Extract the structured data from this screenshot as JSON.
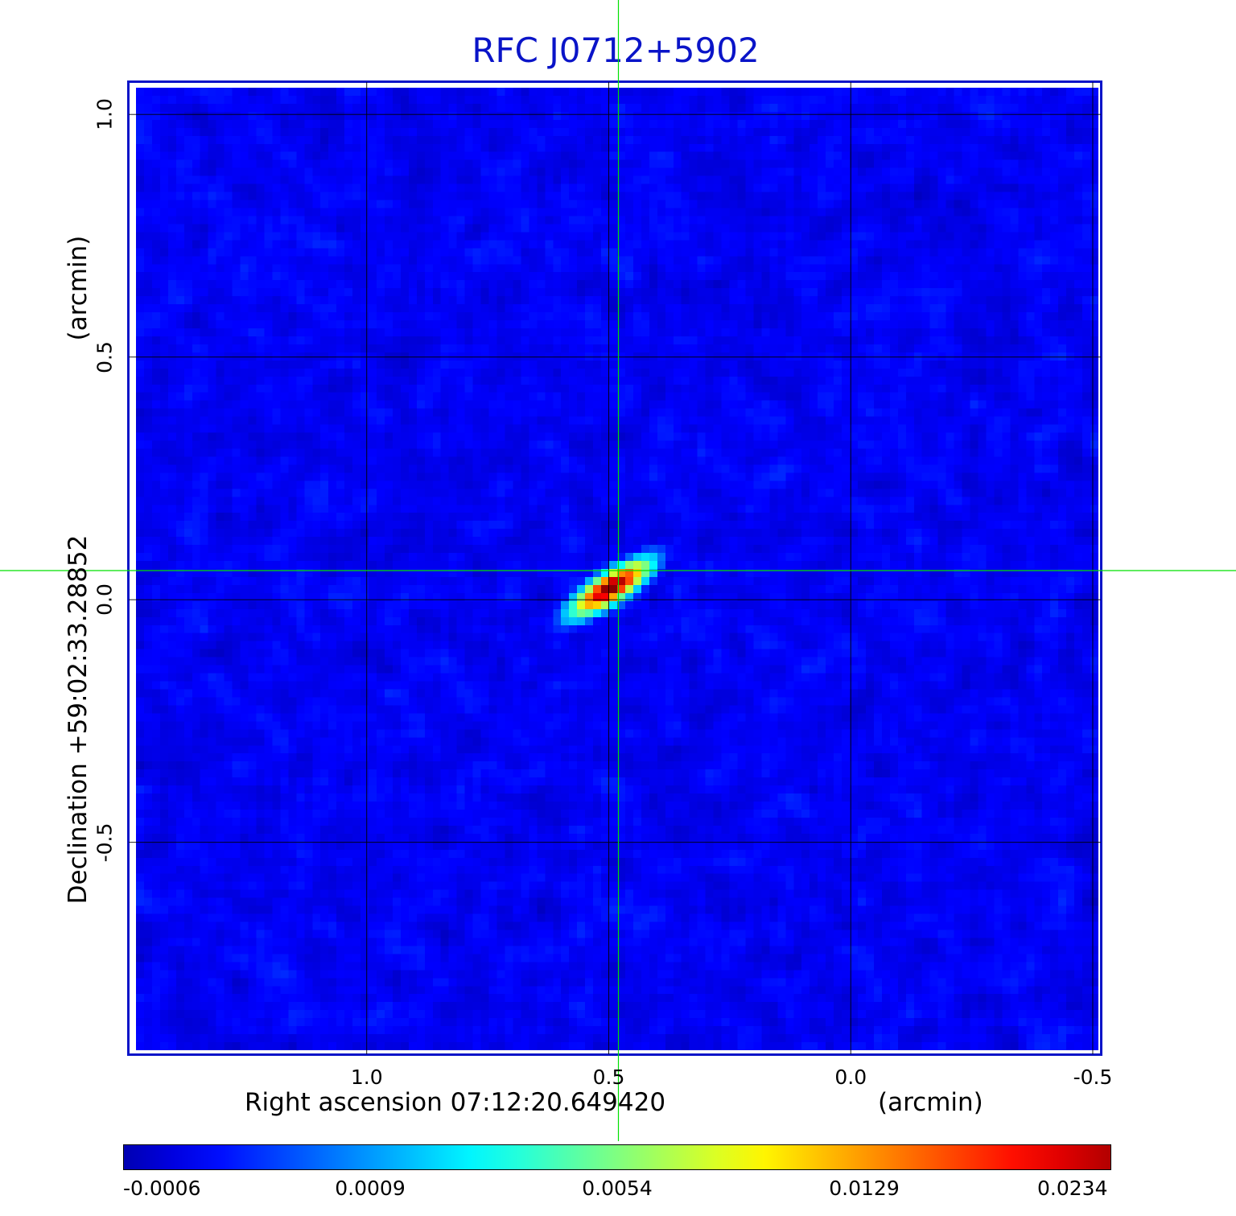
{
  "title": "RFC J0712+5902",
  "chart_data": {
    "type": "heatmap",
    "title": "RFC J0712+5902",
    "xlabel": "Right ascension  07:12:20.649420",
    "xunit": "(arcmin)",
    "ylabel": "Declination  +59:02:33.28852",
    "yunit": "(arcmin)",
    "x_ticks": [
      "1.0",
      "0.5",
      "0.0",
      "-0.5"
    ],
    "y_ticks": [
      "1.0",
      "0.5",
      "0.0",
      "-0.5"
    ],
    "xlim": [
      1.495,
      -0.52
    ],
    "ylim": [
      -0.94,
      1.07
    ],
    "grid": true,
    "crosshair": {
      "x": 0.48,
      "y": 0.06,
      "color": "#00e000"
    },
    "colormap": "jet",
    "colorbar_ticks": [
      "-0.0006",
      "0.0009",
      "0.0054",
      "0.0129",
      "0.0234"
    ],
    "value_range": [
      -0.0006,
      0.0234
    ],
    "source": {
      "x": 0.5,
      "y": 0.03,
      "peak": 0.0234,
      "major_axis": 0.11,
      "minor_axis": 0.035,
      "pa_deg": 33
    },
    "noise_rms": 0.0004
  },
  "colors": {
    "frame": "#0a14c8",
    "grid": "#000000",
    "crosshair": "#00e000"
  }
}
